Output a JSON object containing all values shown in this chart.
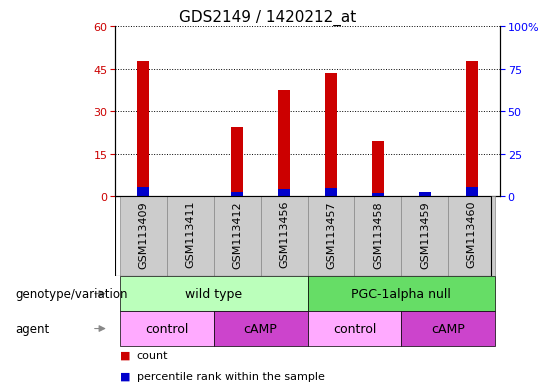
{
  "title": "GDS2149 / 1420212_at",
  "samples": [
    "GSM113409",
    "GSM113411",
    "GSM113412",
    "GSM113456",
    "GSM113457",
    "GSM113458",
    "GSM113459",
    "GSM113460"
  ],
  "count_values": [
    47.5,
    0.0,
    24.5,
    37.5,
    43.5,
    19.5,
    0.5,
    47.5
  ],
  "percentile_values": [
    3.2,
    0.0,
    1.5,
    2.5,
    3.0,
    1.2,
    1.5,
    3.2
  ],
  "count_color": "#cc0000",
  "percentile_color": "#0000cc",
  "left_ylim": [
    0,
    60
  ],
  "right_ylim": [
    0,
    100
  ],
  "left_yticks": [
    0,
    15,
    30,
    45,
    60
  ],
  "right_yticks": [
    0,
    25,
    50,
    75,
    100
  ],
  "right_yticklabels": [
    "0",
    "25",
    "50",
    "75",
    "100%"
  ],
  "bar_width": 0.25,
  "genotype_groups": [
    {
      "label": "wild type",
      "start": 0,
      "end": 3,
      "color": "#bbffbb"
    },
    {
      "label": "PGC-1alpha null",
      "start": 4,
      "end": 7,
      "color": "#66dd66"
    }
  ],
  "agent_groups": [
    {
      "label": "control",
      "start": 0,
      "end": 1,
      "color": "#ffaaff"
    },
    {
      "label": "cAMP",
      "start": 2,
      "end": 3,
      "color": "#cc44cc"
    },
    {
      "label": "control",
      "start": 4,
      "end": 5,
      "color": "#ffaaff"
    },
    {
      "label": "cAMP",
      "start": 6,
      "end": 7,
      "color": "#cc44cc"
    }
  ],
  "genotype_label": "genotype/variation",
  "agent_label": "agent",
  "legend_count_label": "count",
  "legend_pct_label": "percentile rank within the sample",
  "background_color": "#ffffff",
  "sample_box_color": "#cccccc",
  "title_fontsize": 11,
  "tick_fontsize": 8,
  "row_fontsize": 9,
  "label_fontsize": 8.5
}
